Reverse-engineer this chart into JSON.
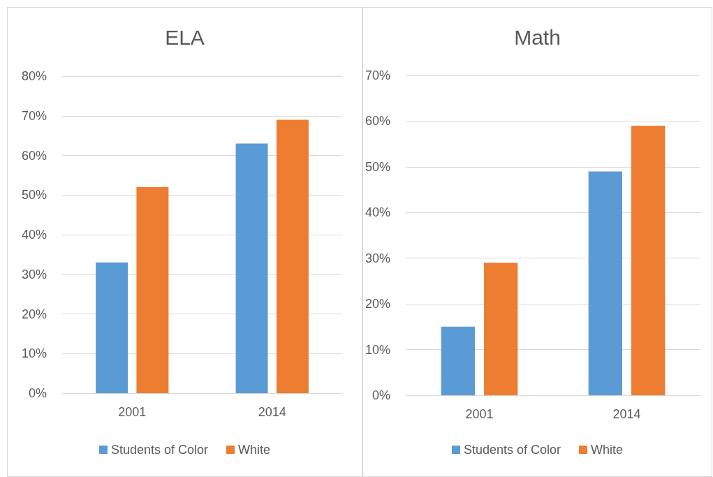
{
  "chart_data": [
    {
      "type": "bar",
      "title": "ELA",
      "categories": [
        "2001",
        "2014"
      ],
      "series": [
        {
          "name": "Students of Color",
          "color": "#5b9bd5",
          "values": [
            33,
            63
          ]
        },
        {
          "name": "White",
          "color": "#ed7d31",
          "values": [
            52,
            69
          ]
        }
      ],
      "ylim": [
        0,
        80
      ],
      "yticks": [
        {
          "value": 0,
          "label": "0%"
        },
        {
          "value": 10,
          "label": "10%"
        },
        {
          "value": 20,
          "label": "20%"
        },
        {
          "value": 30,
          "label": "30%"
        },
        {
          "value": 40,
          "label": "40%"
        },
        {
          "value": 50,
          "label": "50%"
        },
        {
          "value": 60,
          "label": "60%"
        },
        {
          "value": 70,
          "label": "70%"
        },
        {
          "value": 80,
          "label": "80%"
        }
      ],
      "grid": "y",
      "legend": "bottom"
    },
    {
      "type": "bar",
      "title": "Math",
      "categories": [
        "2001",
        "2014"
      ],
      "series": [
        {
          "name": "Students of Color",
          "color": "#5b9bd5",
          "values": [
            15,
            49
          ]
        },
        {
          "name": "White",
          "color": "#ed7d31",
          "values": [
            29,
            59
          ]
        }
      ],
      "ylim": [
        0,
        70
      ],
      "yticks": [
        {
          "value": 0,
          "label": "0%"
        },
        {
          "value": 10,
          "label": "10%"
        },
        {
          "value": 20,
          "label": "20%"
        },
        {
          "value": 30,
          "label": "30%"
        },
        {
          "value": 40,
          "label": "40%"
        },
        {
          "value": 50,
          "label": "50%"
        },
        {
          "value": 60,
          "label": "60%"
        },
        {
          "value": 70,
          "label": "70%"
        }
      ],
      "grid": "y",
      "legend": "bottom"
    }
  ]
}
